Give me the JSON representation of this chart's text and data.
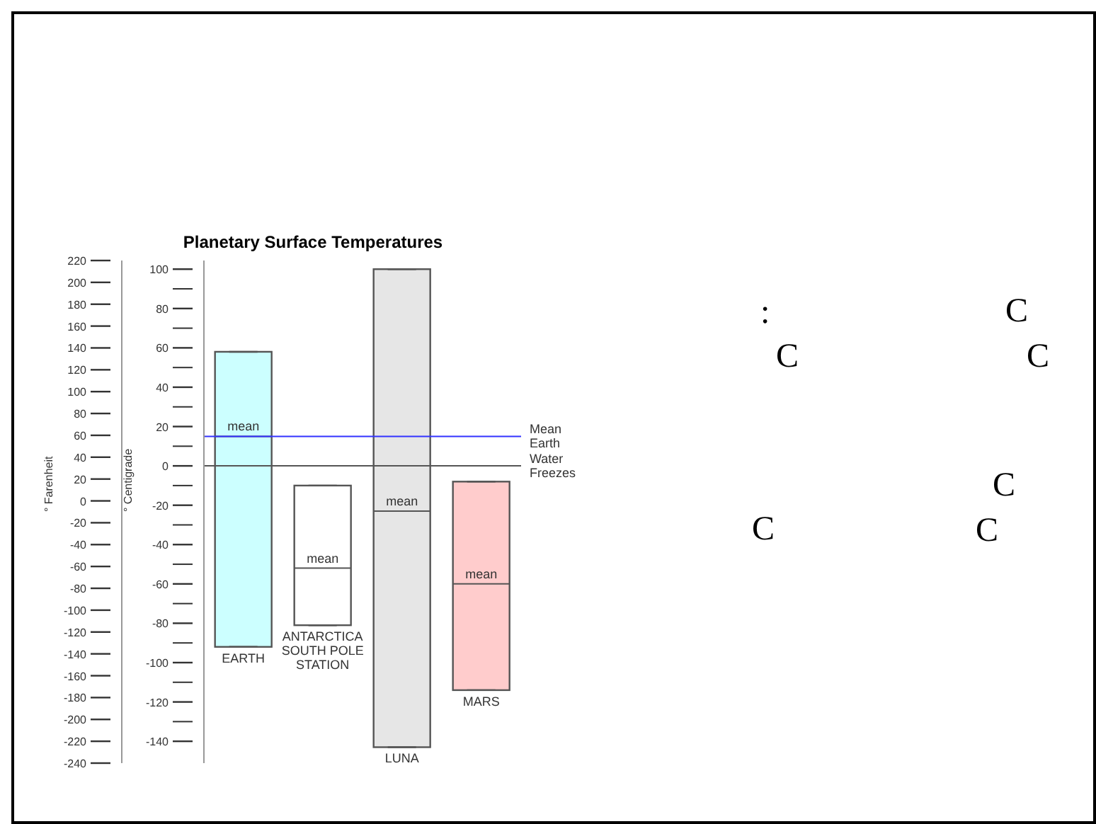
{
  "chart_data": {
    "type": "box",
    "title": "Planetary Surface Temperatures",
    "ylabel": "° Centigrade",
    "y2label": "° Farenheit",
    "categories": [
      "EARTH",
      "ANTARCTICA SOUTH POLE STATION",
      "LUNA",
      "MARS"
    ],
    "boxes": [
      {
        "low": -92,
        "q1": -92,
        "median": 15,
        "q3": 58,
        "high": 58
      },
      {
        "low": -81,
        "q1": -81,
        "median": -52,
        "q3": -10,
        "high": -10
      },
      {
        "low": -143,
        "q1": -143,
        "median": -23,
        "q3": 100,
        "high": 100
      },
      {
        "low": -114,
        "q1": -114,
        "median": -60,
        "q3": -8,
        "high": -8
      }
    ],
    "colors": [
      "#ccffff",
      "#ffffff",
      "#e6e6e6",
      "#ffcccc"
    ],
    "ylim": [
      -151.1,
      104.4
    ],
    "yticks": [
      -140,
      {
        "value": -130,
        "label": null
      },
      -120,
      {
        "value": -110,
        "label": null
      },
      -100,
      {
        "value": -90,
        "label": null
      },
      -80,
      {
        "value": -70,
        "label": null
      },
      -60,
      {
        "value": -50,
        "label": null
      },
      -40,
      {
        "value": -30,
        "label": null
      },
      -20,
      {
        "value": -10,
        "label": null
      },
      0,
      {
        "value": 10,
        "label": null
      },
      20,
      {
        "value": 30,
        "label": null
      },
      40,
      {
        "value": 50,
        "label": null
      },
      60,
      {
        "value": 70,
        "label": null
      },
      80,
      {
        "value": 90,
        "label": null
      },
      100
    ],
    "y2lim": [
      -240,
      220
    ],
    "y2ticks": [
      -240,
      -220,
      -200,
      -180,
      -160,
      -140,
      -120,
      -100,
      -80,
      -60,
      -40,
      -20,
      0,
      20,
      40,
      60,
      80,
      100,
      120,
      140,
      160,
      180,
      200,
      220
    ],
    "ref_lines": [
      {
        "axis": "y",
        "value": 15,
        "label": "Mean Earth",
        "color": "#3333ff"
      },
      {
        "axis": "y",
        "value": 0,
        "label": "Water Freezes",
        "color": "#555555"
      }
    ],
    "annotations": [
      {
        "text": "mean",
        "x": "EARTH",
        "y": 15
      },
      {
        "text": "mean",
        "x": "ANTARCTICA SOUTH POLE STATION",
        "y": -52
      },
      {
        "text": "mean",
        "x": "LUNA",
        "y": -23
      },
      {
        "text": "mean",
        "x": "MARS",
        "y": -60
      },
      ":",
      "C",
      "C",
      "C",
      "C",
      "C",
      "C"
    ]
  }
}
